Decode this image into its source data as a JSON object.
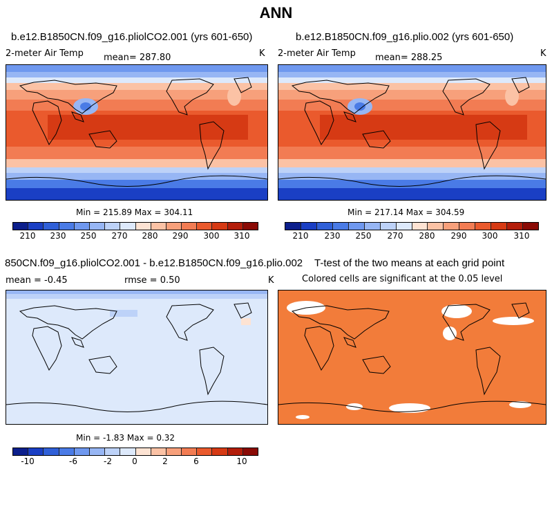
{
  "title": "ANN",
  "panels": [
    {
      "case": "b.e12.B1850CN.f09_g16.pliolCO2.001 (yrs 601-650)",
      "variable": "2-meter Air Temp",
      "stat": "mean= 287.80",
      "units": "K",
      "minmax": "Min = 215.89 Max = 304.11"
    },
    {
      "case": "b.e12.B1850CN.f09_g16.plio.002 (yrs 601-650)",
      "variable": "2-meter Air Temp",
      "stat": "mean= 288.25",
      "units": "K",
      "minmax": "Min = 217.14 Max = 304.59"
    },
    {
      "case": "850CN.f09_g16.pliolCO2.001 - b.e12.B1850CN.f09_g16.plio.002",
      "stat_mean": "mean =   -0.45",
      "stat_rmse": "rmse =    0.50",
      "units": "K",
      "minmax": "Min =  -1.83 Max =   0.32"
    },
    {
      "case": "T-test of the two means at each grid point",
      "subtitle": "Colored cells are significant at the 0.05 level"
    }
  ],
  "colorbar_abs": {
    "colors": [
      "#0c1f8c",
      "#1a3fc4",
      "#3060d8",
      "#4a7be6",
      "#6f98ef",
      "#97b6f4",
      "#bdd2f8",
      "#dde9fb",
      "#fde3d3",
      "#fbc2a5",
      "#f7a07b",
      "#f27c53",
      "#ea5a2d",
      "#d63a14",
      "#b31d0a",
      "#8a0a05"
    ],
    "labels": [
      "210",
      "230",
      "250",
      "270",
      "280",
      "290",
      "300",
      "310"
    ]
  },
  "colorbar_diff": {
    "colors": [
      "#0c1f8c",
      "#1a3fc4",
      "#3060d8",
      "#4a7be6",
      "#6f98ef",
      "#97b6f4",
      "#bdd2f8",
      "#dde9fb",
      "#fde3d3",
      "#fbc2a5",
      "#f7a07b",
      "#f27c53",
      "#ea5a2d",
      "#d63a14",
      "#b31d0a",
      "#8a0a05"
    ],
    "labels": [
      "-10",
      "-6",
      "-2",
      "0",
      "2",
      "6",
      "10"
    ]
  }
}
